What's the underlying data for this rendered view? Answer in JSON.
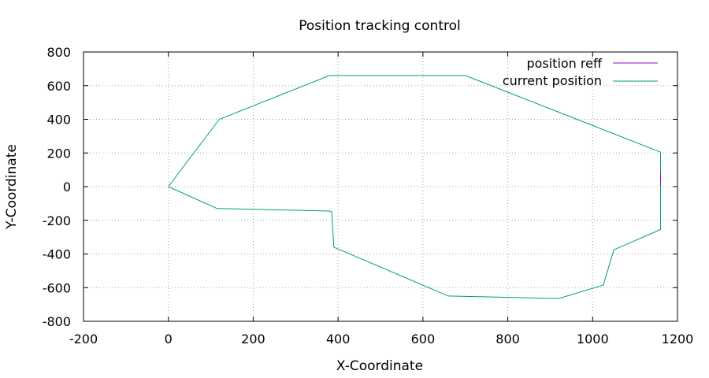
{
  "chart_data": {
    "type": "line",
    "title": "Position tracking control",
    "xlabel": "X-Coordinate",
    "ylabel": "Y-Coordinate",
    "xlim": [
      -200,
      1200
    ],
    "ylim": [
      -800,
      800
    ],
    "xticks": [
      -200,
      0,
      200,
      400,
      600,
      800,
      1000,
      1200
    ],
    "yticks": [
      -800,
      -600,
      -400,
      -200,
      0,
      200,
      400,
      600,
      800
    ],
    "grid": true,
    "legend_position": "top-right",
    "series": [
      {
        "name": "position reff",
        "color": "#9400d3",
        "x": [
          1160,
          1160
        ],
        "y": [
          0,
          80
        ]
      },
      {
        "name": "current position",
        "color": "#009e73",
        "x": [
          0,
          120,
          380,
          700,
          1160,
          1160,
          1160,
          1050,
          1025,
          920,
          660,
          390,
          385,
          380,
          115,
          0
        ],
        "y": [
          0,
          400,
          660,
          660,
          205,
          0,
          -255,
          -375,
          -585,
          -665,
          -650,
          -360,
          -150,
          -145,
          -130,
          0
        ]
      }
    ]
  }
}
